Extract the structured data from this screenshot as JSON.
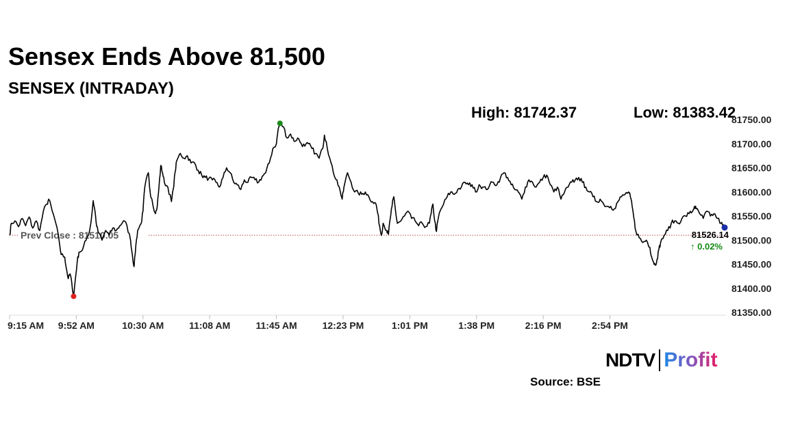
{
  "header": {
    "title": "Sensex Ends Above 81,500",
    "subtitle": "SENSEX (INTRADAY)"
  },
  "stats": {
    "high": "High: 81742.37",
    "low": "Low: 81383.42"
  },
  "footer": {
    "logo_ndtv": "NDTV",
    "logo_profit": "Profit",
    "source": "Source: BSE"
  },
  "colors": {
    "line": "#000000",
    "high_marker": "#1a8a1a",
    "low_marker": "#e02020",
    "last_marker": "#1b2fa8",
    "prev_close_line": "#b94a4a",
    "change_up": "#138a13"
  },
  "chart_data": {
    "type": "line",
    "title": "SENSEX (INTRADAY)",
    "xlabel": "",
    "ylabel": "",
    "ylim": [
      81350,
      81750
    ],
    "yticks": [
      "81750.00",
      "81700.00",
      "81650.00",
      "81600.00",
      "81550.00",
      "81500.00",
      "81450.00",
      "81400.00",
      "81350.00"
    ],
    "xticks": [
      "9:15 AM",
      "9:52 AM",
      "10:30 AM",
      "11:08 AM",
      "11:45 AM",
      "12:23 PM",
      "1:01 PM",
      "1:38 PM",
      "2:16 PM",
      "2:54 PM"
    ],
    "x_unit": "minutes after 9:15 AM",
    "prev_close": 81510.05,
    "prev_close_label": "Prev Close : 81510.05",
    "last_value": 81526.14,
    "last_label": "81526.14",
    "change_label": "↑ 0.02%",
    "high": {
      "x": 152,
      "y": 81742.37
    },
    "low": {
      "x": 36,
      "y": 81383.42
    },
    "grid": false,
    "series": [
      {
        "points": [
          [
            0,
            81510
          ],
          [
            1,
            81535
          ],
          [
            3,
            81540
          ],
          [
            5,
            81528
          ],
          [
            7,
            81545
          ],
          [
            9,
            81530
          ],
          [
            11,
            81548
          ],
          [
            13,
            81525
          ],
          [
            15,
            81540
          ],
          [
            17,
            81520
          ],
          [
            19,
            81560
          ],
          [
            21,
            81575
          ],
          [
            22,
            81585
          ],
          [
            24,
            81560
          ],
          [
            26,
            81535
          ],
          [
            28,
            81495
          ],
          [
            29,
            81470
          ],
          [
            31,
            81465
          ],
          [
            32,
            81440
          ],
          [
            33,
            81420
          ],
          [
            34,
            81430
          ],
          [
            35,
            81410
          ],
          [
            36,
            81383
          ],
          [
            37,
            81420
          ],
          [
            38,
            81455
          ],
          [
            39,
            81475
          ],
          [
            41,
            81480
          ],
          [
            43,
            81500
          ],
          [
            45,
            81520
          ],
          [
            46,
            81545
          ],
          [
            47,
            81582
          ],
          [
            48,
            81560
          ],
          [
            49,
            81528
          ],
          [
            50,
            81515
          ],
          [
            52,
            81500
          ],
          [
            54,
            81520
          ],
          [
            56,
            81510
          ],
          [
            58,
            81525
          ],
          [
            60,
            81520
          ],
          [
            62,
            81530
          ],
          [
            64,
            81540
          ],
          [
            66,
            81530
          ],
          [
            68,
            81500
          ],
          [
            69,
            81470
          ],
          [
            70,
            81445
          ],
          [
            71,
            81490
          ],
          [
            72,
            81520
          ],
          [
            74,
            81535
          ],
          [
            75,
            81560
          ],
          [
            76,
            81610
          ],
          [
            78,
            81640
          ],
          [
            79,
            81600
          ],
          [
            80,
            81585
          ],
          [
            82,
            81555
          ],
          [
            83,
            81570
          ],
          [
            84,
            81610
          ],
          [
            85,
            81655
          ],
          [
            86,
            81640
          ],
          [
            87,
            81620
          ],
          [
            89,
            81610
          ],
          [
            91,
            81580
          ],
          [
            92,
            81605
          ],
          [
            93,
            81640
          ],
          [
            94,
            81665
          ],
          [
            96,
            81680
          ],
          [
            98,
            81670
          ],
          [
            100,
            81675
          ],
          [
            102,
            81660
          ],
          [
            104,
            81660
          ],
          [
            106,
            81645
          ],
          [
            108,
            81635
          ],
          [
            110,
            81630
          ],
          [
            112,
            81628
          ],
          [
            114,
            81625
          ],
          [
            116,
            81620
          ],
          [
            118,
            81610
          ],
          [
            120,
            81630
          ],
          [
            122,
            81650
          ],
          [
            124,
            81640
          ],
          [
            126,
            81620
          ],
          [
            128,
            81615
          ],
          [
            130,
            81605
          ],
          [
            132,
            81625
          ],
          [
            134,
            81620
          ],
          [
            136,
            81630
          ],
          [
            138,
            81625
          ],
          [
            140,
            81620
          ],
          [
            142,
            81632
          ],
          [
            144,
            81640
          ],
          [
            146,
            81660
          ],
          [
            148,
            81690
          ],
          [
            150,
            81700
          ],
          [
            151,
            81730
          ],
          [
            152,
            81742
          ],
          [
            154,
            81735
          ],
          [
            156,
            81712
          ],
          [
            158,
            81720
          ],
          [
            160,
            81705
          ],
          [
            162,
            81712
          ],
          [
            164,
            81700
          ],
          [
            166,
            81695
          ],
          [
            168,
            81700
          ],
          [
            170,
            81690
          ],
          [
            172,
            81680
          ],
          [
            174,
            81670
          ],
          [
            176,
            81690
          ],
          [
            177,
            81718
          ],
          [
            178,
            81705
          ],
          [
            180,
            81670
          ],
          [
            182,
            81640
          ],
          [
            184,
            81625
          ],
          [
            186,
            81600
          ],
          [
            187,
            81585
          ],
          [
            188,
            81610
          ],
          [
            190,
            81640
          ],
          [
            192,
            81620
          ],
          [
            194,
            81600
          ],
          [
            196,
            81598
          ],
          [
            198,
            81595
          ],
          [
            200,
            81600
          ],
          [
            202,
            81590
          ],
          [
            204,
            81580
          ],
          [
            206,
            81575
          ],
          [
            207,
            81555
          ],
          [
            208,
            81530
          ],
          [
            209,
            81510
          ],
          [
            210,
            81535
          ],
          [
            212,
            81520
          ],
          [
            213,
            81512
          ],
          [
            214,
            81545
          ],
          [
            215,
            81570
          ],
          [
            216,
            81590
          ],
          [
            217,
            81560
          ],
          [
            218,
            81535
          ],
          [
            220,
            81540
          ],
          [
            222,
            81550
          ],
          [
            224,
            81560
          ],
          [
            226,
            81545
          ],
          [
            228,
            81540
          ],
          [
            230,
            81530
          ],
          [
            232,
            81535
          ],
          [
            234,
            81528
          ],
          [
            236,
            81535
          ],
          [
            237,
            81555
          ],
          [
            238,
            81575
          ],
          [
            239,
            81540
          ],
          [
            240,
            81518
          ],
          [
            241,
            81545
          ],
          [
            242,
            81560
          ],
          [
            244,
            81575
          ],
          [
            246,
            81590
          ],
          [
            248,
            81600
          ],
          [
            250,
            81595
          ],
          [
            252,
            81605
          ],
          [
            254,
            81610
          ],
          [
            256,
            81620
          ],
          [
            258,
            81615
          ],
          [
            260,
            81615
          ],
          [
            262,
            81600
          ],
          [
            264,
            81615
          ],
          [
            266,
            81610
          ],
          [
            268,
            81605
          ],
          [
            270,
            81615
          ],
          [
            272,
            81620
          ],
          [
            274,
            81615
          ],
          [
            276,
            81630
          ],
          [
            278,
            81640
          ],
          [
            280,
            81630
          ],
          [
            282,
            81615
          ],
          [
            284,
            81605
          ],
          [
            286,
            81600
          ],
          [
            288,
            81585
          ],
          [
            290,
            81610
          ],
          [
            292,
            81625
          ],
          [
            294,
            81620
          ],
          [
            296,
            81610
          ],
          [
            298,
            81620
          ],
          [
            300,
            81630
          ],
          [
            302,
            81635
          ],
          [
            304,
            81615
          ],
          [
            306,
            81600
          ],
          [
            308,
            81610
          ],
          [
            310,
            81585
          ],
          [
            312,
            81600
          ],
          [
            314,
            81610
          ],
          [
            316,
            81620
          ],
          [
            318,
            81625
          ],
          [
            320,
            81630
          ],
          [
            322,
            81620
          ],
          [
            324,
            81610
          ],
          [
            326,
            81600
          ],
          [
            328,
            81590
          ],
          [
            330,
            81580
          ],
          [
            332,
            81585
          ],
          [
            334,
            81575
          ],
          [
            336,
            81570
          ],
          [
            338,
            81570
          ],
          [
            340,
            81565
          ],
          [
            342,
            81580
          ],
          [
            344,
            81590
          ],
          [
            346,
            81595
          ],
          [
            348,
            81600
          ],
          [
            349,
            81590
          ],
          [
            350,
            81570
          ],
          [
            351,
            81545
          ],
          [
            352,
            81520
          ],
          [
            354,
            81505
          ],
          [
            356,
            81495
          ],
          [
            358,
            81500
          ],
          [
            360,
            81485
          ],
          [
            361,
            81465
          ],
          [
            362,
            81455
          ],
          [
            363,
            81448
          ],
          [
            364,
            81460
          ],
          [
            365,
            81480
          ],
          [
            366,
            81495
          ],
          [
            368,
            81510
          ],
          [
            370,
            81520
          ],
          [
            372,
            81535
          ],
          [
            374,
            81540
          ],
          [
            376,
            81535
          ],
          [
            378,
            81545
          ],
          [
            380,
            81550
          ],
          [
            382,
            81555
          ],
          [
            384,
            81560
          ],
          [
            385,
            81570
          ],
          [
            386,
            81565
          ],
          [
            388,
            81555
          ],
          [
            390,
            81545
          ],
          [
            392,
            81560
          ],
          [
            394,
            81550
          ],
          [
            396,
            81555
          ],
          [
            398,
            81545
          ],
          [
            400,
            81535
          ],
          [
            401,
            81530
          ],
          [
            402,
            81526
          ]
        ]
      }
    ]
  }
}
